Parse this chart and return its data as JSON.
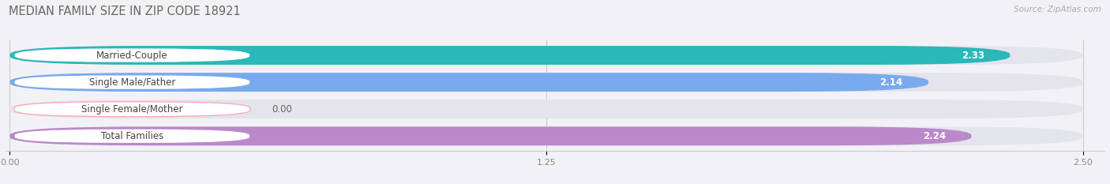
{
  "title": "MEDIAN FAMILY SIZE IN ZIP CODE 18921",
  "source": "Source: ZipAtlas.com",
  "categories": [
    "Married-Couple",
    "Single Male/Father",
    "Single Female/Mother",
    "Total Families"
  ],
  "values": [
    2.33,
    2.14,
    0.0,
    2.24
  ],
  "bar_colors": [
    "#2ab8b8",
    "#7aaaee",
    "#ffaabb",
    "#bb88cc"
  ],
  "background_color": "#f2f2f6",
  "bar_bg_color": "#e4e4ec",
  "xlim_max": 2.5,
  "xticks": [
    0.0,
    1.25,
    2.5
  ],
  "label_fontsize": 8.5,
  "value_fontsize": 8.5,
  "title_fontsize": 10.5,
  "source_fontsize": 7.5
}
